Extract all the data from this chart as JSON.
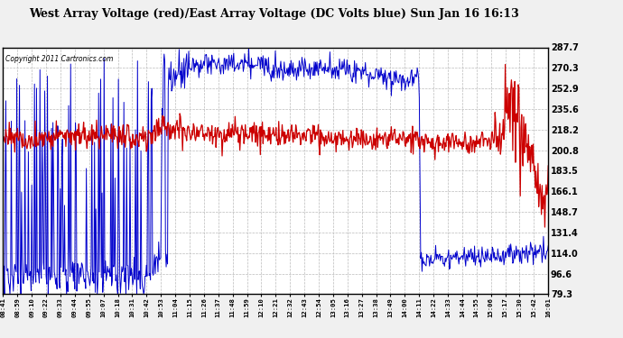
{
  "title": "West Array Voltage (red)/East Array Voltage (DC Volts blue) Sun Jan 16 16:13",
  "copyright": "Copyright 2011 Cartronics.com",
  "y_ticks": [
    79.3,
    96.6,
    114.0,
    131.4,
    148.7,
    166.1,
    183.5,
    200.8,
    218.2,
    235.6,
    252.9,
    270.3,
    287.7
  ],
  "x_labels": [
    "08:41",
    "08:59",
    "09:10",
    "09:22",
    "09:33",
    "09:44",
    "09:55",
    "10:07",
    "10:18",
    "10:31",
    "10:42",
    "10:53",
    "11:04",
    "11:15",
    "11:26",
    "11:37",
    "11:48",
    "11:59",
    "12:10",
    "12:21",
    "12:32",
    "12:43",
    "12:54",
    "13:05",
    "13:16",
    "13:27",
    "13:38",
    "13:49",
    "14:00",
    "14:11",
    "14:22",
    "14:33",
    "14:44",
    "14:55",
    "15:06",
    "15:17",
    "15:30",
    "15:42",
    "16:01"
  ],
  "bg_color": "#f0f0f0",
  "plot_bg_color": "#ffffff",
  "grid_color": "#bbbbbb",
  "red_color": "#cc0000",
  "blue_color": "#0000cc",
  "ymin": 79.3,
  "ymax": 287.7
}
